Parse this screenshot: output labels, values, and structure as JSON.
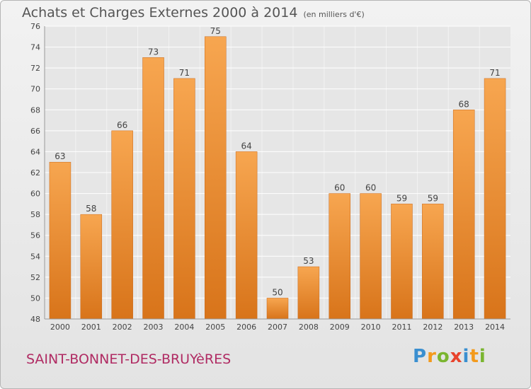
{
  "header": {
    "title": "Achats et Charges Externes 2000 à 2014",
    "subtitle": "(en milliers d'€)"
  },
  "footer": {
    "town": "SAINT-BONNET-DES-BRUYèRES",
    "logo_letters": [
      "P",
      "r",
      "o",
      "x",
      "i",
      "t",
      "i"
    ],
    "logo_colors": [
      "#3a8fd0",
      "#f39a1c",
      "#7ab530",
      "#e8432c",
      "#3a8fd0",
      "#f39a1c",
      "#7ab530"
    ]
  },
  "colors": {
    "bar_light": "#f7a650",
    "bar_dark": "#d8741a",
    "grid": "#ffffff",
    "text": "#444444"
  },
  "chart_data": {
    "type": "bar",
    "categories": [
      "2000",
      "2001",
      "2002",
      "2003",
      "2004",
      "2005",
      "2006",
      "2007",
      "2008",
      "2009",
      "2010",
      "2011",
      "2012",
      "2013",
      "2014"
    ],
    "values": [
      63,
      58,
      66,
      73,
      71,
      75,
      64,
      50,
      53,
      60,
      60,
      59,
      59,
      68,
      71
    ],
    "yticks": [
      48,
      50,
      52,
      54,
      56,
      58,
      60,
      62,
      64,
      66,
      68,
      70,
      72,
      74,
      76
    ],
    "ylim": [
      48,
      76
    ],
    "grid": true
  }
}
